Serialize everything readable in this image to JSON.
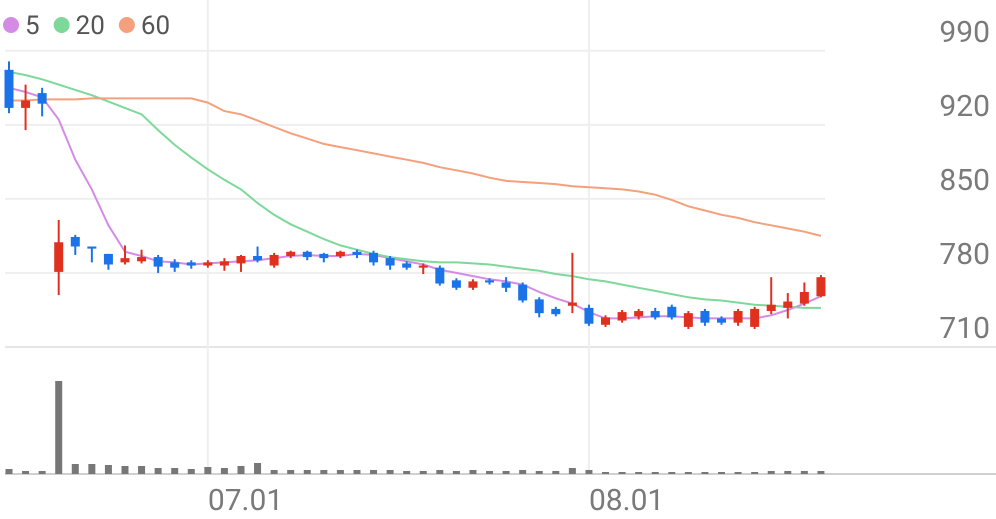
{
  "chart_data": {
    "type": "candlestick",
    "categories": [
      null,
      null,
      null,
      null,
      null,
      null,
      null,
      null,
      null,
      null,
      null,
      null,
      "07.01",
      null,
      null,
      null,
      null,
      null,
      null,
      null,
      null,
      null,
      null,
      null,
      null,
      null,
      null,
      null,
      null,
      null,
      null,
      null,
      null,
      null,
      null,
      "08.01",
      null,
      null,
      null,
      null,
      null,
      null,
      null,
      null,
      null,
      null,
      null,
      null,
      null,
      null
    ],
    "open": [
      972,
      936,
      950,
      781,
      814,
      805,
      798,
      790,
      791,
      795,
      790,
      790,
      787,
      787,
      789,
      796,
      787,
      796,
      800,
      798,
      796,
      800,
      799,
      794,
      789,
      785,
      785,
      773,
      766,
      773,
      771,
      769,
      755,
      746,
      749,
      747,
      731,
      735,
      739,
      744,
      748,
      729,
      744,
      737,
      733,
      729,
      744,
      747,
      751,
      758
    ],
    "high": [
      980,
      958,
      955,
      830,
      816,
      805,
      798,
      806,
      802,
      797,
      793,
      792,
      792,
      794,
      797,
      805,
      799,
      801,
      801,
      799,
      801,
      802,
      801,
      796,
      791,
      789,
      787,
      775,
      774,
      775,
      776,
      771,
      757,
      748,
      799,
      750,
      740,
      745,
      746,
      747,
      750,
      744,
      746,
      739,
      746,
      748,
      776,
      761,
      771,
      778
    ],
    "low": [
      931,
      915,
      928,
      759,
      797,
      790,
      783,
      788,
      789,
      780,
      781,
      784,
      785,
      782,
      781,
      790,
      785,
      794,
      792,
      790,
      794,
      794,
      787,
      783,
      783,
      779,
      768,
      764,
      764,
      769,
      762,
      752,
      738,
      739,
      742,
      730,
      729,
      733,
      736,
      736,
      736,
      727,
      730,
      731,
      730,
      727,
      741,
      737,
      749,
      757
    ],
    "close": [
      936,
      943,
      940,
      809,
      805,
      803,
      788,
      794,
      795,
      786,
      785,
      787,
      790,
      791,
      796,
      792,
      797,
      800,
      795,
      794,
      800,
      797,
      790,
      787,
      785,
      787,
      770,
      766,
      772,
      771,
      766,
      754,
      742,
      741,
      752,
      732,
      738,
      743,
      744,
      738,
      738,
      742,
      733,
      733,
      744,
      746,
      750,
      753,
      762,
      776
    ],
    "up_color": "#e0311f",
    "down_color": "#1a73e8",
    "series": [
      {
        "name": "5",
        "color": "#d48be6",
        "values": [
          955,
          951,
          946,
          925,
          887,
          859,
          825,
          800,
          796,
          791,
          790,
          788,
          789,
          790,
          791,
          792,
          794,
          796,
          797,
          796,
          796,
          798,
          797,
          794,
          791,
          788,
          783,
          780,
          777,
          774,
          772,
          769,
          762,
          756,
          751,
          743,
          737,
          737,
          738,
          739,
          739,
          738,
          737,
          737,
          737,
          737,
          740,
          745,
          751,
          758
        ]
      },
      {
        "name": "20",
        "color": "#7dd89a",
        "values": [
          970,
          967,
          963,
          958,
          953,
          948,
          942,
          936,
          930,
          915,
          901,
          889,
          878,
          868,
          859,
          846,
          835,
          826,
          819,
          812,
          806,
          802,
          798,
          795,
          793,
          791,
          790,
          790,
          789,
          788,
          786,
          784,
          782,
          779,
          777,
          774,
          772,
          769,
          766,
          763,
          760,
          757,
          755,
          754,
          752,
          750,
          749,
          748,
          747,
          747
        ]
      },
      {
        "name": "60",
        "color": "#f4a07c",
        "values": [
          943,
          943,
          944,
          944,
          944,
          945,
          945,
          945,
          945,
          945,
          945,
          945,
          941,
          933,
          930,
          924,
          918,
          912,
          907,
          902,
          899,
          896,
          893,
          890,
          887,
          884,
          880,
          877,
          874,
          870,
          867,
          866,
          865,
          864,
          862,
          861,
          860,
          859,
          857,
          854,
          849,
          843,
          839,
          835,
          832,
          828,
          825,
          822,
          819,
          815
        ]
      }
    ],
    "volume": [
      5,
      3,
      3,
      93,
      10,
      10,
      9,
      8,
      8,
      6,
      6,
      5,
      7,
      6,
      8,
      11,
      4,
      4,
      4,
      4,
      4,
      4,
      4,
      4,
      3,
      3,
      4,
      3,
      4,
      3,
      3,
      4,
      3,
      3,
      6,
      4,
      2,
      2,
      2,
      2,
      2,
      2,
      2,
      2,
      2,
      2,
      3,
      3,
      3,
      3
    ],
    "volume_color": "#777777",
    "ylim": [
      710,
      1038
    ],
    "yticks": [
      710,
      780,
      850,
      920,
      990
    ],
    "grid": true
  }
}
